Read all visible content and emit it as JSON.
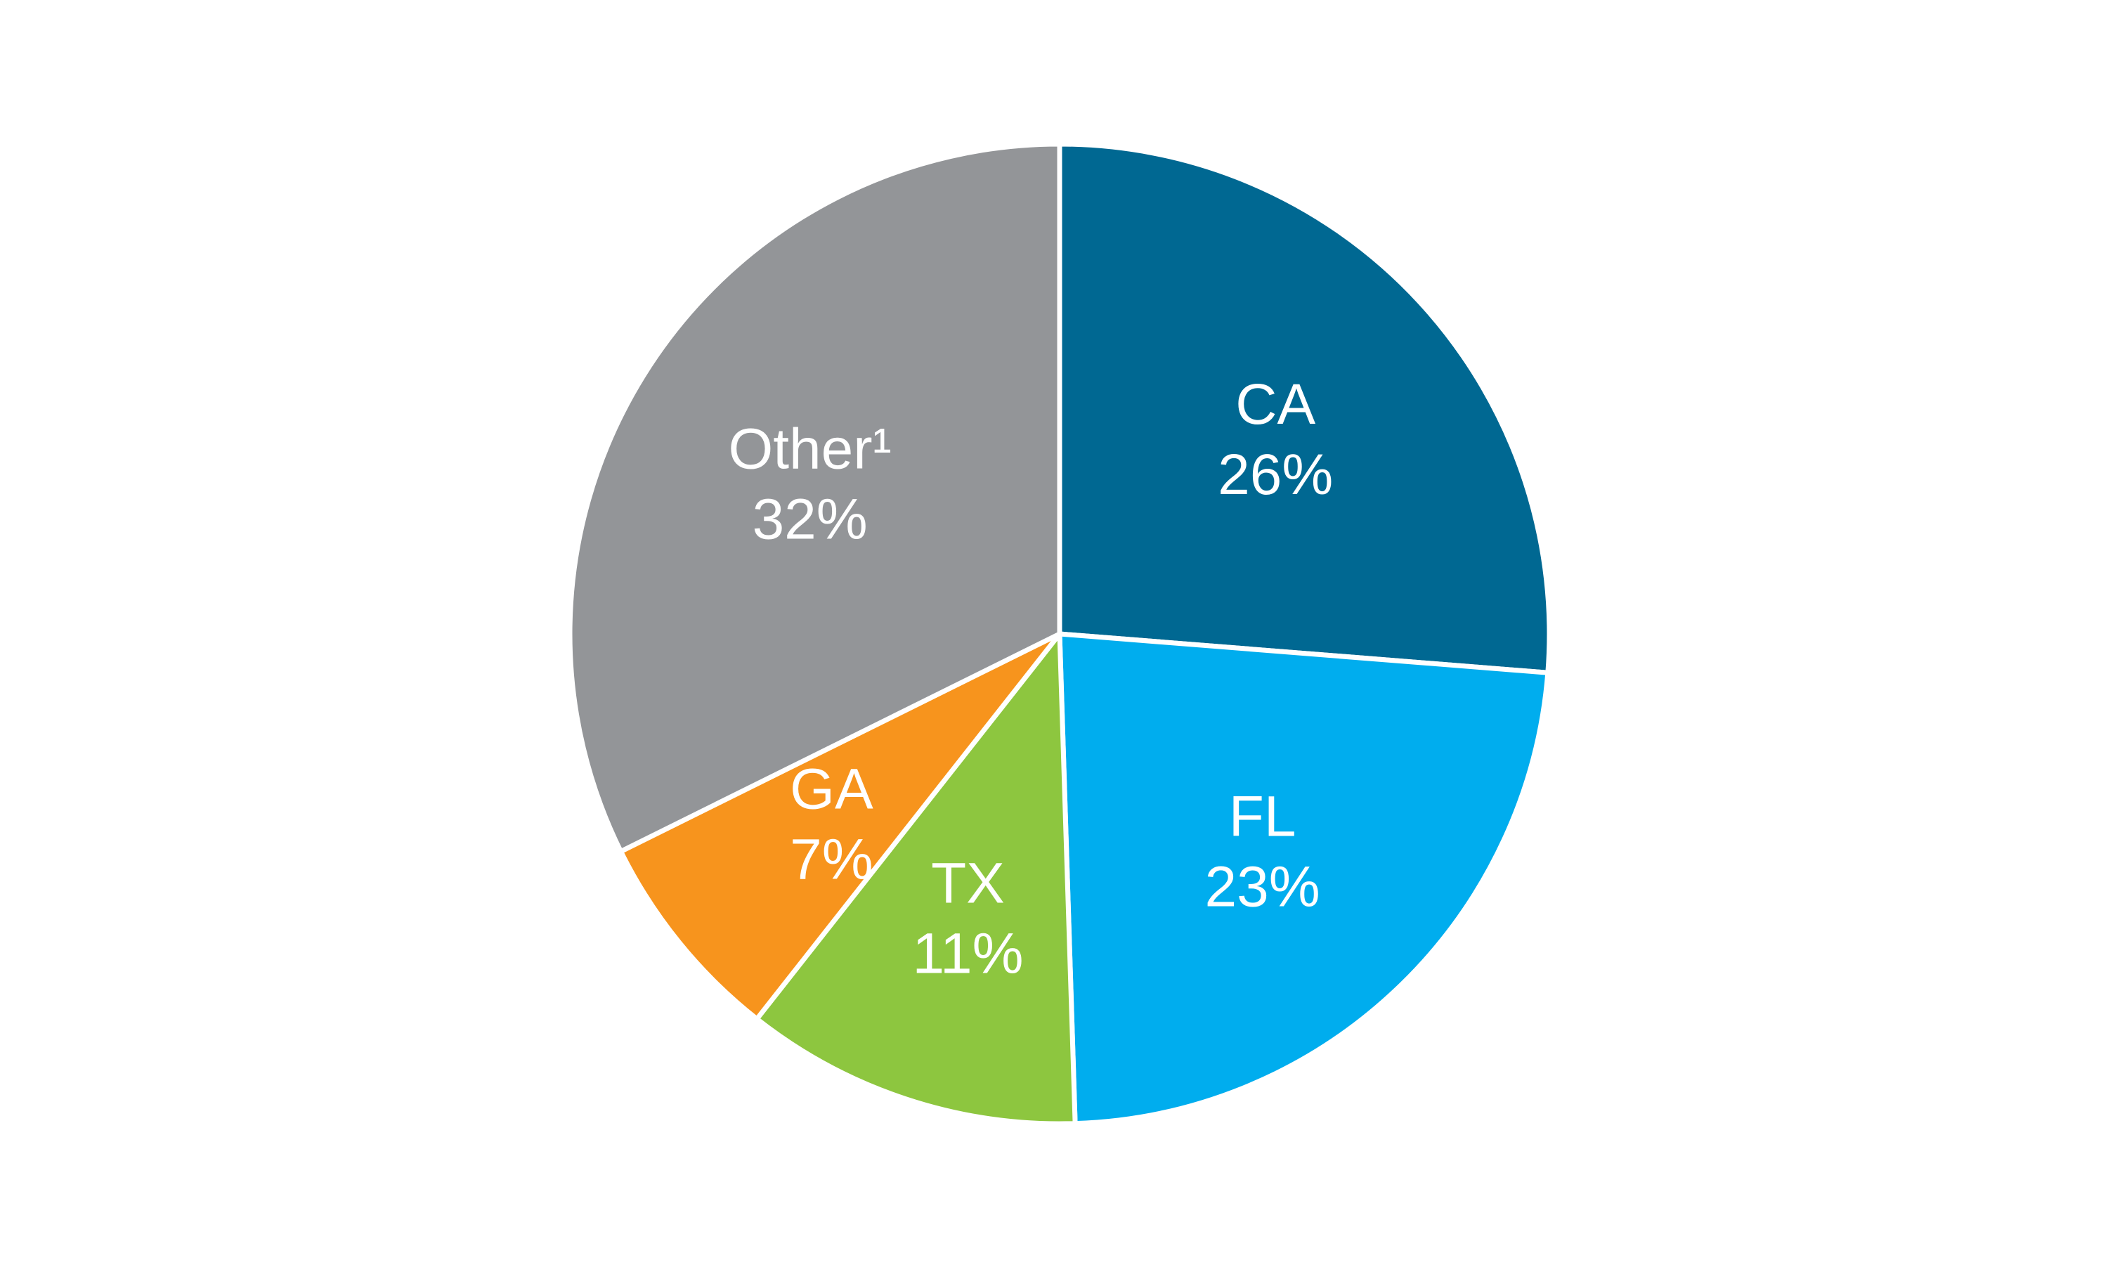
{
  "chart_data": {
    "type": "pie",
    "slices": [
      {
        "label": "CA",
        "value": 26,
        "value_label": "26%",
        "color": "#006892"
      },
      {
        "label": "FL",
        "value": 23,
        "value_label": "23%",
        "color": "#00ADEE"
      },
      {
        "label": "TX",
        "value": 11,
        "value_label": "11%",
        "color": "#8DC63F"
      },
      {
        "label": "GA",
        "value": 7,
        "value_label": "7%",
        "color": "#F7941D"
      },
      {
        "label": "Other¹",
        "value": 32,
        "value_label": "32%",
        "color": "#939598"
      }
    ],
    "start_angle_deg": 0,
    "direction": "clockwise",
    "slice_border_color": "#ffffff",
    "legend": "none"
  }
}
